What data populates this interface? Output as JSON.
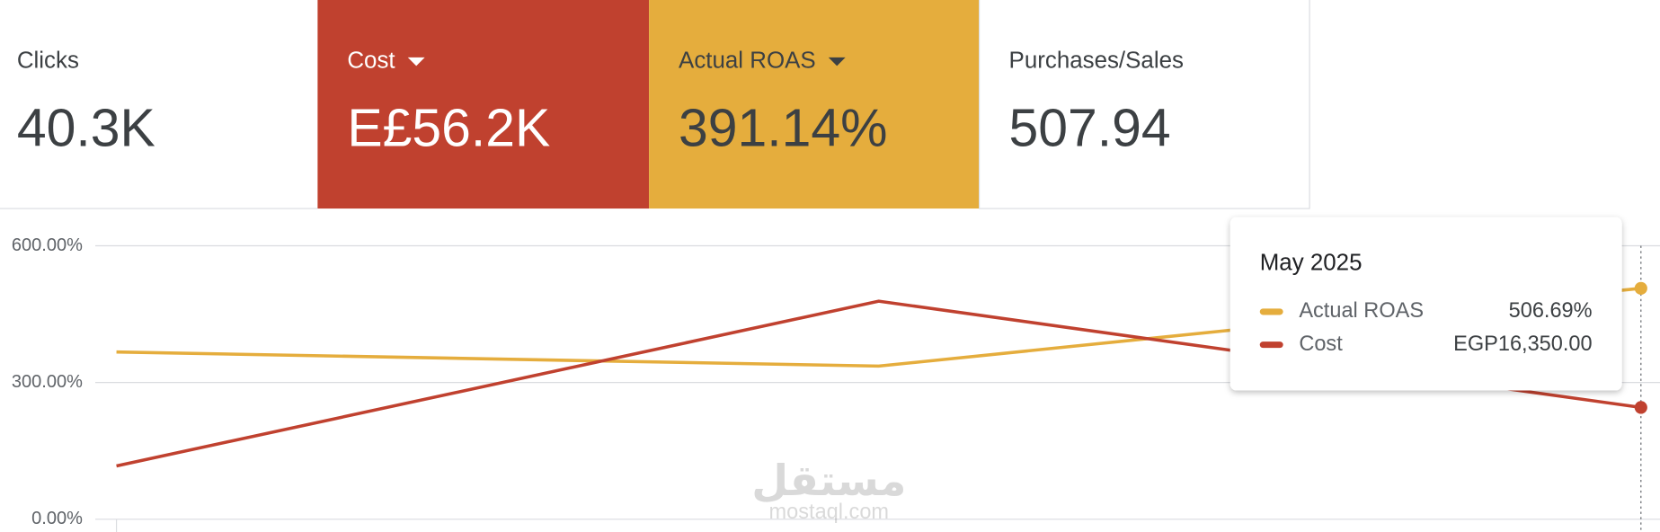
{
  "scorecards": [
    {
      "label": "Clicks",
      "value": "40.3K"
    },
    {
      "label": "Cost",
      "value": "E£56.2K"
    },
    {
      "label": "Actual ROAS",
      "value": "391.14%"
    },
    {
      "label": "Purchases/Sales",
      "value": "507.94"
    }
  ],
  "chart_data": {
    "type": "line",
    "categories": [
      null,
      null,
      "May 2025"
    ],
    "series": [
      {
        "name": "Actual ROAS",
        "color": "#e5ad3d",
        "values": [
          367,
          336,
          506.69
        ],
        "value_labels": [
          null,
          null,
          "506.69%"
        ]
      },
      {
        "name": "Cost",
        "color": "#c0412f",
        "axis": "y2",
        "values": [
          7800,
          31900,
          16350
        ],
        "value_labels": [
          null,
          null,
          "EGP16,350.00"
        ]
      }
    ],
    "ylim": [
      0,
      600
    ],
    "yticks": [
      {
        "value": 0,
        "label": "0.00%"
      },
      {
        "value": 300,
        "label": "300.00%"
      },
      {
        "value": 600,
        "label": "600.00%"
      }
    ],
    "y2lim": [
      0,
      40000
    ],
    "grid": true
  },
  "watermark": {
    "arabic": "مستقل",
    "latin": "mostaql.com"
  }
}
